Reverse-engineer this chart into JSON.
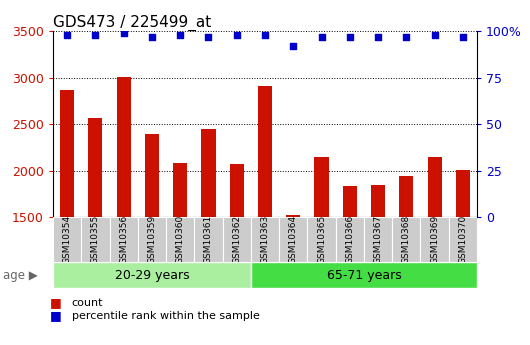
{
  "title": "GDS473 / 225499_at",
  "samples": [
    "GSM10354",
    "GSM10355",
    "GSM10356",
    "GSM10359",
    "GSM10360",
    "GSM10361",
    "GSM10362",
    "GSM10363",
    "GSM10364",
    "GSM10365",
    "GSM10366",
    "GSM10367",
    "GSM10368",
    "GSM10369",
    "GSM10370"
  ],
  "counts": [
    2870,
    2570,
    3010,
    2390,
    2080,
    2450,
    2070,
    2910,
    1520,
    2150,
    1840,
    1850,
    1940,
    2150,
    2010
  ],
  "percentiles": [
    98,
    98,
    99,
    97,
    98,
    97,
    98,
    98,
    92,
    97,
    97,
    97,
    97,
    98,
    97
  ],
  "group1_count": 7,
  "group2_count": 8,
  "group1_label": "20-29 years",
  "group2_label": "65-71 years",
  "age_label": "age",
  "ylim_left": [
    1500,
    3500
  ],
  "ylim_right": [
    0,
    100
  ],
  "yticks_left": [
    1500,
    2000,
    2500,
    3000,
    3500
  ],
  "yticks_right": [
    0,
    25,
    50,
    75,
    100
  ],
  "bar_color": "#cc1100",
  "dot_color": "#0000cc",
  "group1_bg": "#aaeea0",
  "group2_bg": "#44dd44",
  "xticklabel_bg": "#cccccc",
  "plot_bg": "#ffffff",
  "fig_bg": "#ffffff",
  "legend_count_label": "count",
  "legend_percentile_label": "percentile rank within the sample",
  "grid_color": "#000000",
  "title_fontsize": 11,
  "tick_fontsize": 9,
  "label_fontsize": 9,
  "bar_width": 0.5
}
